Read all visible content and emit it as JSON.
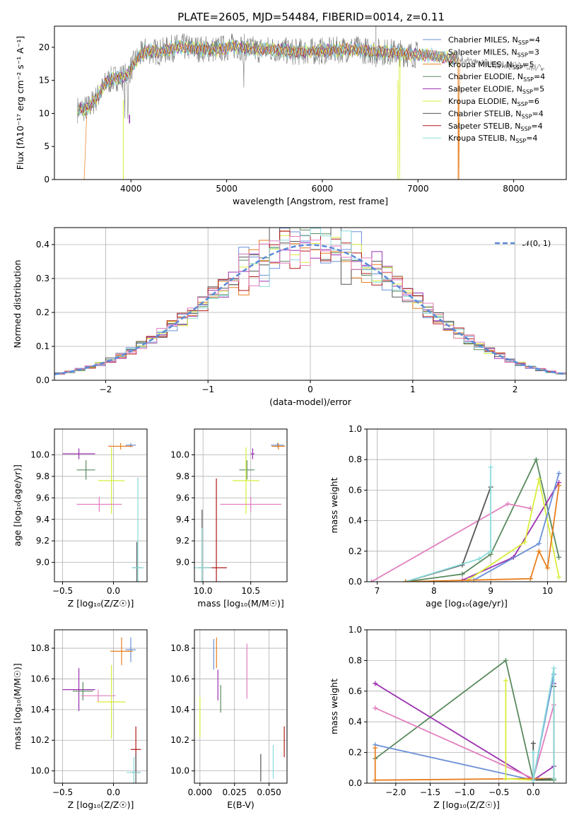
{
  "figure_title": "PLATE=2605, MJD=54484, FIBERID=0014, z=0.11",
  "colors": {
    "chabrier_miles": "#6a8fd8",
    "salpeter_miles": "#e6873a",
    "kroupa_miles": "#e87f1e",
    "chabrier_elodie": "#5a8a5e",
    "salpeter_elodie": "#9b30b0",
    "kroupa_elodie": "#d8ee3a",
    "chabrier_stelib": "#555555",
    "salpeter_stelib": "#b01818",
    "kroupa_stelib": "#8adada",
    "pink": "#e27fbf",
    "normal_curve": "#5b8ad8"
  },
  "chart_data": [
    {
      "id": "spectrum",
      "type": "line",
      "title": "PLATE=2605, MJD=54484, FIBERID=0014, z=0.11",
      "xlabel": "wavelength [Angstrom, rest frame]",
      "ylabel": "Flux [fλ10⁻¹⁷ erg cm⁻² s⁻¹ A⁻¹]",
      "xlim": [
        3200,
        8550
      ],
      "ylim": [
        0,
        23.2
      ],
      "xticks": [
        "4000",
        "5000",
        "6000",
        "7000",
        "8000"
      ],
      "yticks": [
        "0",
        "5",
        "10",
        "15",
        "20"
      ],
      "grid": false,
      "legend_position": "right",
      "legend": [
        {
          "label": "Chabrier MILES, N",
          "sub": "SSP",
          "suffix": "=4",
          "color": "#6a8fd8"
        },
        {
          "label": "Salpeter MILES, N",
          "sub": "SSP",
          "suffix": "=3",
          "color": "#b0b0b0"
        },
        {
          "label": "Kroupa MILES, N",
          "sub": "SSP",
          "suffix": "=5",
          "color": "#e87f1e"
        },
        {
          "label": "Chabrier ELODIE, N",
          "sub": "SSP",
          "suffix": "=4",
          "color": "#5a8a5e"
        },
        {
          "label": "Salpeter ELODIE, N",
          "sub": "SSP",
          "suffix": "=5",
          "color": "#9b30b0"
        },
        {
          "label": "Kroupa ELODIE, N",
          "sub": "SSP",
          "suffix": "=6",
          "color": "#d8ee3a"
        },
        {
          "label": "Chabrier STELIB, N",
          "sub": "SSP",
          "suffix": "=4",
          "color": "#555555"
        },
        {
          "label": "Salpeter STELIB, N",
          "sub": "SSP",
          "suffix": "=4",
          "color": "#b01818"
        },
        {
          "label": "Kroupa STELIB, N",
          "sub": "SSP",
          "suffix": "=4",
          "color": "#8adada"
        }
      ],
      "continuum": {
        "x": [
          3440,
          3550,
          3650,
          3750,
          3850,
          3950,
          4050,
          4150,
          4300,
          4500,
          4700,
          4900,
          5100,
          5300,
          5500,
          5700,
          5900,
          6100,
          6300,
          6500,
          6700,
          6900,
          7100,
          7300,
          7500,
          7700,
          7900,
          8100,
          8300
        ],
        "y": [
          10.6,
          10.8,
          12.5,
          14.8,
          15.4,
          15.6,
          18.0,
          19.5,
          19.3,
          20.1,
          19.8,
          19.7,
          20.2,
          19.6,
          19.7,
          19.3,
          19.4,
          19.5,
          19.8,
          19.4,
          19.3,
          19.0,
          18.8,
          18.4,
          18.0,
          17.6,
          17.3,
          17.1,
          16.9
        ]
      }
    },
    {
      "id": "residuals",
      "type": "bar",
      "xlabel": "(data-model)/error",
      "ylabel": "Normed distribution",
      "xlim": [
        -2.5,
        2.5
      ],
      "ylim": [
        0,
        0.45
      ],
      "xticks": [
        "−2",
        "−1",
        "0",
        "1",
        "2"
      ],
      "xtick_values": [
        -2,
        -1,
        0,
        1,
        2
      ],
      "yticks": [
        "0.0",
        "0.1",
        "0.2",
        "0.3",
        "0.4"
      ],
      "ytick_values": [
        0,
        0.1,
        0.2,
        0.3,
        0.4
      ],
      "grid": true,
      "legend_position": "top-right",
      "legend": [
        {
          "label": "𝒩(0, 1)",
          "color": "#5b8ad8"
        }
      ],
      "bin_width": 0.1
    },
    {
      "id": "age-vs-Z",
      "type": "scatter",
      "xlabel": "Z [log₁₀(Z/Z☉)]",
      "ylabel": "age  [log₁₀(age/yr)]",
      "xlim": [
        -0.58,
        0.33
      ],
      "ylim": [
        8.82,
        10.24
      ],
      "xticks": [
        "−0.5",
        "0.0"
      ],
      "xtick_values": [
        -0.5,
        0.0
      ],
      "yticks": [
        "9.0",
        "9.2",
        "9.4",
        "9.6",
        "9.8",
        "10.0"
      ],
      "ytick_values": [
        9.0,
        9.2,
        9.4,
        9.6,
        9.8,
        10.0
      ],
      "grid": true,
      "points": [
        {
          "x": 0.17,
          "y": 10.09,
          "xerr": 0.05,
          "yerr": 0.02,
          "color": "#6a8fd8"
        },
        {
          "x": 0.07,
          "y": 10.08,
          "xerr": 0.12,
          "yerr": 0.03,
          "color": "#e87f1e"
        },
        {
          "x": -0.34,
          "y": 10.01,
          "xerr": 0.16,
          "yerr": 0.05,
          "color": "#9b30b0"
        },
        {
          "x": -0.27,
          "y": 9.86,
          "xerr": 0.09,
          "yerr": 0.09,
          "color": "#5a8a5e"
        },
        {
          "x": -0.02,
          "y": 9.76,
          "xerr": 0.13,
          "yerr": 0.31,
          "color": "#d8ee3a"
        },
        {
          "x": -0.14,
          "y": 9.54,
          "xerr": 0.22,
          "yerr": 0.07,
          "color": "#e27fbf"
        },
        {
          "x": 0.23,
          "y": 8.95,
          "xerr": 0.04,
          "yerr": 0.24,
          "color": "#555555"
        },
        {
          "x": 0.24,
          "y": 8.95,
          "xerr": 0.06,
          "yerr": 0.84,
          "color": "#8adada"
        }
      ]
    },
    {
      "id": "age-vs-mass",
      "type": "scatter",
      "xlabel": "mass [log₁₀(M/M☉)]",
      "xlim": [
        9.91,
        10.88
      ],
      "ylim": [
        8.82,
        10.24
      ],
      "xticks": [
        "10.0",
        "10.5"
      ],
      "xtick_values": [
        10.0,
        10.5
      ],
      "yticks": [
        "9.0",
        "9.2",
        "9.4",
        "9.6",
        "9.8",
        "10.0"
      ],
      "ytick_values": [
        9.0,
        9.2,
        9.4,
        9.6,
        9.8,
        10.0
      ],
      "grid": true,
      "points": [
        {
          "x": 10.78,
          "y": 10.09,
          "xerr": 0.07,
          "yerr": 0.02,
          "color": "#6a8fd8"
        },
        {
          "x": 10.79,
          "y": 10.08,
          "xerr": 0.07,
          "yerr": 0.03,
          "color": "#e87f1e"
        },
        {
          "x": 10.52,
          "y": 10.01,
          "xerr": 0.02,
          "yerr": 0.05,
          "color": "#9b30b0"
        },
        {
          "x": 10.46,
          "y": 9.86,
          "xerr": 0.08,
          "yerr": 0.09,
          "color": "#5a8a5e"
        },
        {
          "x": 10.45,
          "y": 9.76,
          "xerr": 0.14,
          "yerr": 0.31,
          "color": "#d8ee3a"
        },
        {
          "x": 10.5,
          "y": 9.54,
          "xerr": 0.32,
          "yerr": 0.07,
          "color": "#e27fbf"
        },
        {
          "x": 9.99,
          "y": 8.95,
          "xerr": 0.04,
          "yerr": 0.54,
          "color": "#555555"
        },
        {
          "x": 10.14,
          "y": 8.95,
          "xerr": 0.11,
          "yerr": 0.83,
          "color": "#b01818"
        },
        {
          "x": 9.99,
          "y": 8.95,
          "xerr": 0.1,
          "yerr": 0.37,
          "color": "#8adada"
        }
      ]
    },
    {
      "id": "mass-weight-vs-age",
      "type": "line",
      "xlabel": "age  [log₁₀(age/yr)]",
      "ylabel": "mass weight",
      "xlim": [
        6.82,
        10.33
      ],
      "ylim": [
        0,
        1.0
      ],
      "xticks": [
        "7",
        "8",
        "9",
        "10"
      ],
      "xtick_values": [
        7,
        8,
        9,
        10
      ],
      "yticks": [
        "0.0",
        "0.2",
        "0.4",
        "0.6",
        "0.8",
        "1.0"
      ],
      "ytick_values": [
        0,
        0.2,
        0.4,
        0.6,
        0.8,
        1.0
      ],
      "grid": true,
      "series": [
        {
          "color": "#5a8a5e",
          "x": [
            7.5,
            8.5,
            9.0,
            9.8,
            10.2
          ],
          "y": [
            0.0,
            0.05,
            0.18,
            0.8,
            0.16
          ]
        },
        {
          "color": "#e27fbf",
          "x": [
            6.9,
            9.3,
            9.7
          ],
          "y": [
            0.0,
            0.51,
            0.48
          ]
        },
        {
          "color": "#555555",
          "x": [
            7.5,
            8.5,
            9.0
          ],
          "y": [
            0.0,
            0.11,
            0.62
          ]
        },
        {
          "color": "#8adada",
          "x": [
            7.5,
            8.8,
            9.0,
            9.0
          ],
          "y": [
            0.0,
            0.15,
            0.2,
            0.75
          ]
        },
        {
          "color": "#9b30b0",
          "x": [
            8.5,
            9.4,
            10.2
          ],
          "y": [
            0.01,
            0.16,
            0.65
          ]
        },
        {
          "color": "#d8ee3a",
          "x": [
            8.6,
            9.6,
            9.85,
            10.2
          ],
          "y": [
            0.01,
            0.26,
            0.67,
            0.03
          ]
        },
        {
          "color": "#6a8fd8",
          "x": [
            8.7,
            9.85,
            10.2
          ],
          "y": [
            0.01,
            0.25,
            0.71
          ]
        },
        {
          "color": "#e87f1e",
          "x": [
            7.5,
            9.7,
            9.85,
            10.0,
            10.2
          ],
          "y": [
            0.0,
            0.02,
            0.2,
            0.09,
            0.63
          ]
        }
      ]
    },
    {
      "id": "mass-vs-Z",
      "type": "scatter",
      "xlabel": "Z [log₁₀(Z/Z☉)]",
      "ylabel": "mass [log₁₀(M/M☉)]",
      "xlim": [
        -0.58,
        0.33
      ],
      "ylim": [
        9.92,
        10.92
      ],
      "xticks": [
        "−0.5",
        "0.0"
      ],
      "xtick_values": [
        -0.5,
        0.0
      ],
      "yticks": [
        "10.0",
        "10.2",
        "10.4",
        "10.6",
        "10.8"
      ],
      "ytick_values": [
        10.0,
        10.2,
        10.4,
        10.6,
        10.8
      ],
      "grid": true,
      "points": [
        {
          "x": 0.17,
          "y": 10.79,
          "xerr": 0.05,
          "yerr": 0.08,
          "color": "#6a8fd8"
        },
        {
          "x": 0.08,
          "y": 10.78,
          "xerr": 0.11,
          "yerr": 0.09,
          "color": "#e87f1e"
        },
        {
          "x": -0.34,
          "y": 10.53,
          "xerr": 0.16,
          "yerr": 0.14,
          "color": "#9b30b0"
        },
        {
          "x": -0.3,
          "y": 10.52,
          "xerr": 0.1,
          "yerr": 0.06,
          "color": "#5a8a5e"
        },
        {
          "x": -0.15,
          "y": 10.49,
          "xerr": 0.17,
          "yerr": 0.04,
          "color": "#e27fbf"
        },
        {
          "x": -0.02,
          "y": 10.45,
          "xerr": 0.14,
          "yerr": 0.24,
          "color": "#d8ee3a"
        },
        {
          "x": 0.22,
          "y": 10.14,
          "xerr": 0.05,
          "yerr": 0.15,
          "color": "#b01818"
        },
        {
          "x": 0.22,
          "y": 9.99,
          "xerr": 0.04,
          "yerr": 0.12,
          "color": "#555555"
        },
        {
          "x": 0.2,
          "y": 9.99,
          "xerr": 0.07,
          "yerr": 0.1,
          "color": "#8adada"
        }
      ]
    },
    {
      "id": "mass-vs-EBV",
      "type": "scatter",
      "xlabel": "E(B-V)",
      "xlim": [
        -0.004,
        0.063
      ],
      "ylim": [
        9.92,
        10.92
      ],
      "xticks": [
        "0.000",
        "0.025",
        "0.050"
      ],
      "xtick_values": [
        0,
        0.025,
        0.05
      ],
      "yticks": [
        "10.0",
        "10.2",
        "10.4",
        "10.6",
        "10.8"
      ],
      "ytick_values": [
        10.0,
        10.2,
        10.4,
        10.6,
        10.8
      ],
      "grid": true,
      "points": [
        {
          "x": 0.01,
          "y": 10.76,
          "xerr": 0,
          "yerr": 0.1,
          "color": "#6a8fd8"
        },
        {
          "x": 0.012,
          "y": 10.77,
          "xerr": 0,
          "yerr": 0.1,
          "color": "#e87f1e"
        },
        {
          "x": 0.013,
          "y": 10.56,
          "xerr": 0,
          "yerr": 0.1,
          "color": "#9b30b0"
        },
        {
          "x": 0.015,
          "y": 10.47,
          "xerr": 0,
          "yerr": 0.09,
          "color": "#5a8a5e"
        },
        {
          "x": 0.034,
          "y": 10.65,
          "xerr": 0,
          "yerr": 0.18,
          "color": "#e27fbf"
        },
        {
          "x": 0.0,
          "y": 10.35,
          "xerr": 0,
          "yerr": 0.13,
          "color": "#d8ee3a"
        },
        {
          "x": 0.044,
          "y": 10.02,
          "xerr": 0,
          "yerr": 0.09,
          "color": "#555555"
        },
        {
          "x": 0.053,
          "y": 10.06,
          "xerr": 0,
          "yerr": 0.11,
          "color": "#8adada"
        },
        {
          "x": 0.061,
          "y": 10.19,
          "xerr": 0,
          "yerr": 0.1,
          "color": "#b01818"
        }
      ]
    },
    {
      "id": "mass-weight-vs-Z",
      "type": "line",
      "xlabel": "Z [log₁₀(Z/Z☉)]",
      "ylabel": "mass weight",
      "xlim": [
        -2.42,
        0.48
      ],
      "ylim": [
        0,
        1.0
      ],
      "xticks": [
        "−2.0",
        "−1.5",
        "−1.0",
        "−0.5",
        "0.0"
      ],
      "xtick_values": [
        -2.0,
        -1.5,
        -1.0,
        -0.5,
        0.0
      ],
      "yticks": [
        "0.0",
        "0.2",
        "0.4",
        "0.6",
        "0.8",
        "1.0"
      ],
      "ytick_values": [
        0,
        0.2,
        0.4,
        0.6,
        0.8,
        1.0
      ],
      "grid": true,
      "series": [
        {
          "color": "#5a8a5e",
          "x": [
            -2.3,
            -0.4,
            0.0,
            0.0,
            0.3
          ],
          "y": [
            0.16,
            0.8,
            0.02,
            0.02,
            0.02
          ]
        },
        {
          "color": "#9b30b0",
          "x": [
            -2.3,
            0.0,
            0.3,
            0.3
          ],
          "y": [
            0.65,
            0.02,
            0.11,
            0.65
          ]
        },
        {
          "color": "#e27fbf",
          "x": [
            -2.3,
            0.0,
            0.3
          ],
          "y": [
            0.49,
            0.03,
            0.51
          ]
        },
        {
          "color": "#6a8fd8",
          "x": [
            -2.3,
            0.0,
            0.3
          ],
          "y": [
            0.25,
            0.02,
            0.71
          ]
        },
        {
          "color": "#e87f1e",
          "x": [
            -2.3,
            -2.3,
            0.0,
            0.3,
            0.3
          ],
          "y": [
            0.23,
            0.02,
            0.03,
            0.03,
            0.63
          ]
        },
        {
          "color": "#d8ee3a",
          "x": [
            -0.4,
            -0.4,
            0.0,
            0.3
          ],
          "y": [
            0.67,
            0.03,
            0.02,
            0.03
          ]
        },
        {
          "color": "#555555",
          "x": [
            0.0,
            0.0,
            0.3,
            0.3
          ],
          "y": [
            0.26,
            0.02,
            0.03,
            0.63
          ]
        },
        {
          "color": "#8adada",
          "x": [
            0.0,
            0.0,
            0.3,
            0.3
          ],
          "y": [
            0.2,
            0.02,
            0.75,
            0.03
          ]
        }
      ]
    }
  ]
}
